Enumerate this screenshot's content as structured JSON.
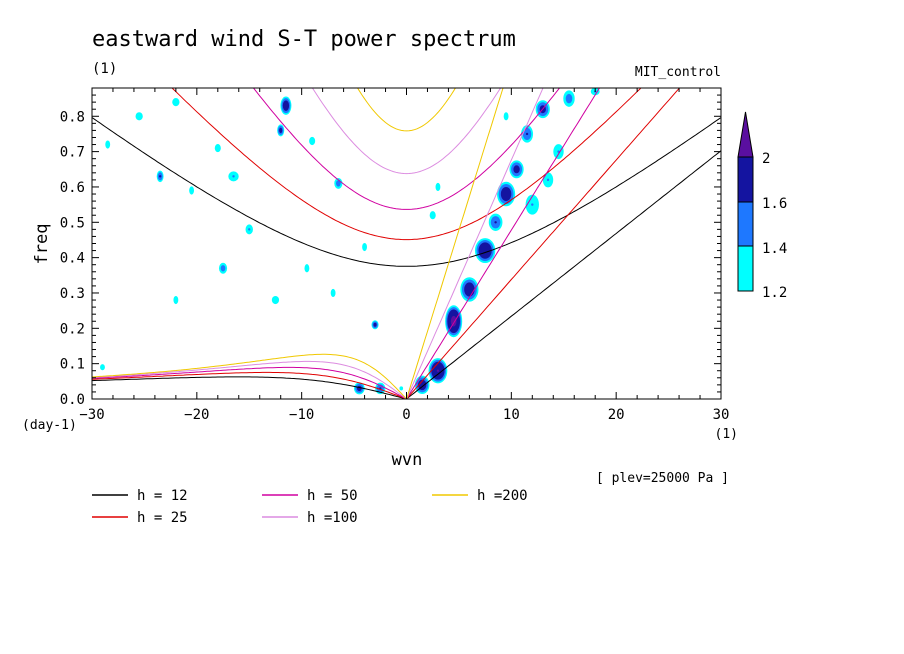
{
  "chart_data": {
    "type": "heatmap",
    "title": "eastward wind S-T power spectrum",
    "subtitle_left": "(1)",
    "subtitle_right": "MIT_control",
    "xlabel": "wvn",
    "ylabel": "freq",
    "x_unit": "(1)",
    "y_unit": "(day-1)",
    "xlim": [
      -30,
      30
    ],
    "ylim": [
      0,
      0.88
    ],
    "xticks": [
      -30,
      -20,
      -10,
      0,
      10,
      20,
      30
    ],
    "yticks": [
      0.0,
      0.1,
      0.2,
      0.3,
      0.4,
      0.5,
      0.6,
      0.7,
      0.8
    ],
    "annotation": "[ plev=25000 Pa ]",
    "colorbar": {
      "levels": [
        "1.2",
        "1.4",
        "1.6",
        "2"
      ],
      "colors": [
        "#00ffff",
        "#1e78ff",
        "#1414a0",
        "#5a0fa0"
      ]
    },
    "legend": [
      {
        "label": "h = 12",
        "color": "#000000"
      },
      {
        "label": "h = 25",
        "color": "#e00000"
      },
      {
        "label": "h = 50",
        "color": "#d000a0"
      },
      {
        "label": "h =100",
        "color": "#dc8ce0"
      },
      {
        "label": "h =200",
        "color": "#f0c800"
      }
    ],
    "dispersion_curves": [
      {
        "name": "h = 12",
        "color": "#000000",
        "h": 12
      },
      {
        "name": "h = 25",
        "color": "#e00000",
        "h": 25
      },
      {
        "name": "h = 50",
        "color": "#d000a0",
        "h": 50
      },
      {
        "name": "h =100",
        "color": "#dc8ce0",
        "h": 100
      },
      {
        "name": "h =200",
        "color": "#f0c800",
        "h": 200
      }
    ],
    "power_blobs": [
      {
        "x": 4.5,
        "y": 0.22,
        "sx": 0.9,
        "sy": 0.05,
        "v": 2.1
      },
      {
        "x": 3.0,
        "y": 0.08,
        "sx": 1.0,
        "sy": 0.04,
        "v": 2.0
      },
      {
        "x": 1.5,
        "y": 0.04,
        "sx": 0.8,
        "sy": 0.03,
        "v": 1.8
      },
      {
        "x": 6.0,
        "y": 0.31,
        "sx": 1.0,
        "sy": 0.04,
        "v": 1.8
      },
      {
        "x": 7.5,
        "y": 0.42,
        "sx": 1.1,
        "sy": 0.04,
        "v": 1.9
      },
      {
        "x": 9.5,
        "y": 0.58,
        "sx": 1.0,
        "sy": 0.04,
        "v": 1.8
      },
      {
        "x": 10.5,
        "y": 0.65,
        "sx": 0.8,
        "sy": 0.03,
        "v": 1.7
      },
      {
        "x": 8.5,
        "y": 0.5,
        "sx": 0.8,
        "sy": 0.03,
        "v": 1.6
      },
      {
        "x": 11.5,
        "y": 0.75,
        "sx": 0.7,
        "sy": 0.03,
        "v": 1.6
      },
      {
        "x": 13.0,
        "y": 0.82,
        "sx": 0.8,
        "sy": 0.03,
        "v": 1.7
      },
      {
        "x": 15.5,
        "y": 0.85,
        "sx": 0.7,
        "sy": 0.03,
        "v": 1.5
      },
      {
        "x": 12.0,
        "y": 0.55,
        "sx": 0.9,
        "sy": 0.04,
        "v": 1.4
      },
      {
        "x": 13.5,
        "y": 0.62,
        "sx": 0.7,
        "sy": 0.03,
        "v": 1.4
      },
      {
        "x": 14.5,
        "y": 0.7,
        "sx": 0.7,
        "sy": 0.03,
        "v": 1.4
      },
      {
        "x": -4.5,
        "y": 0.03,
        "sx": 0.6,
        "sy": 0.02,
        "v": 1.7
      },
      {
        "x": -2.5,
        "y": 0.03,
        "sx": 0.6,
        "sy": 0.02,
        "v": 1.6
      },
      {
        "x": -3.0,
        "y": 0.21,
        "sx": 0.4,
        "sy": 0.015,
        "v": 1.7
      },
      {
        "x": -11.5,
        "y": 0.83,
        "sx": 0.6,
        "sy": 0.03,
        "v": 1.8
      },
      {
        "x": -12.0,
        "y": 0.76,
        "sx": 0.4,
        "sy": 0.02,
        "v": 1.7
      },
      {
        "x": -16.5,
        "y": 0.63,
        "sx": 0.7,
        "sy": 0.02,
        "v": 1.4
      },
      {
        "x": -15.0,
        "y": 0.48,
        "sx": 0.5,
        "sy": 0.02,
        "v": 1.4
      },
      {
        "x": -23.5,
        "y": 0.63,
        "sx": 0.4,
        "sy": 0.02,
        "v": 1.6
      },
      {
        "x": -17.5,
        "y": 0.37,
        "sx": 0.5,
        "sy": 0.02,
        "v": 1.5
      },
      {
        "x": -6.5,
        "y": 0.61,
        "sx": 0.5,
        "sy": 0.02,
        "v": 1.5
      },
      {
        "x": -9.0,
        "y": 0.73,
        "sx": 0.5,
        "sy": 0.02,
        "v": 1.3
      },
      {
        "x": -25.5,
        "y": 0.8,
        "sx": 0.6,
        "sy": 0.02,
        "v": 1.3
      },
      {
        "x": -22.0,
        "y": 0.84,
        "sx": 0.6,
        "sy": 0.02,
        "v": 1.3
      },
      {
        "x": -18.0,
        "y": 0.71,
        "sx": 0.5,
        "sy": 0.02,
        "v": 1.3
      },
      {
        "x": -20.5,
        "y": 0.59,
        "sx": 0.4,
        "sy": 0.02,
        "v": 1.3
      },
      {
        "x": -12.5,
        "y": 0.28,
        "sx": 0.6,
        "sy": 0.02,
        "v": 1.3
      },
      {
        "x": -22.0,
        "y": 0.28,
        "sx": 0.4,
        "sy": 0.02,
        "v": 1.3
      },
      {
        "x": 2.5,
        "y": 0.52,
        "sx": 0.5,
        "sy": 0.02,
        "v": 1.3
      },
      {
        "x": 3.0,
        "y": 0.6,
        "sx": 0.4,
        "sy": 0.02,
        "v": 1.3
      },
      {
        "x": -4.0,
        "y": 0.43,
        "sx": 0.4,
        "sy": 0.02,
        "v": 1.3
      },
      {
        "x": -9.5,
        "y": 0.37,
        "sx": 0.4,
        "sy": 0.02,
        "v": 1.3
      },
      {
        "x": -7.0,
        "y": 0.3,
        "sx": 0.4,
        "sy": 0.02,
        "v": 1.3
      },
      {
        "x": -28.5,
        "y": 0.72,
        "sx": 0.4,
        "sy": 0.02,
        "v": 1.3
      },
      {
        "x": -29.0,
        "y": 0.09,
        "sx": 0.4,
        "sy": 0.015,
        "v": 1.3
      },
      {
        "x": 9.5,
        "y": 0.8,
        "sx": 0.4,
        "sy": 0.02,
        "v": 1.3
      },
      {
        "x": 18.0,
        "y": 0.87,
        "sx": 0.6,
        "sy": 0.015,
        "v": 1.4
      },
      {
        "x": -0.5,
        "y": 0.03,
        "sx": 0.3,
        "sy": 0.01,
        "v": 1.3
      }
    ]
  }
}
